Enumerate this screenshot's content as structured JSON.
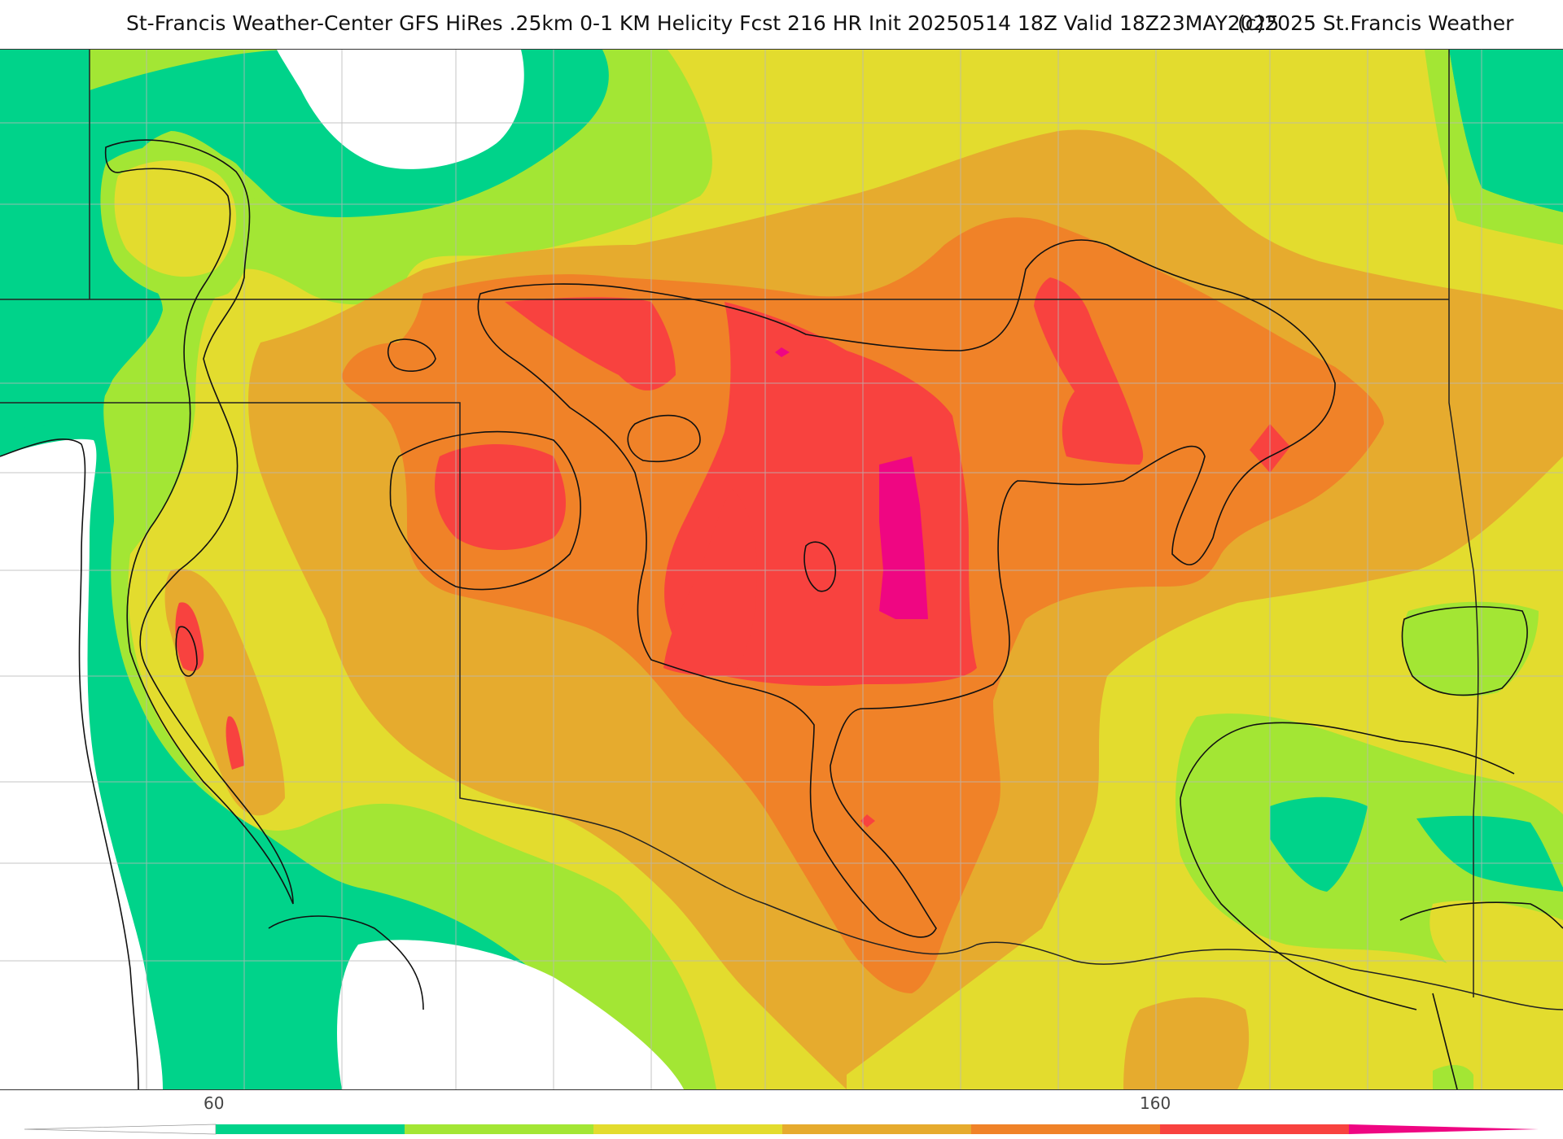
{
  "header": {
    "title": "St-Francis Weather-Center GFS HiRes .25km 0-1 KM Helicity Fcst 216 HR Init 20250514 18Z  Valid 18Z23MAY2025",
    "copyright": "(c)2025 St.Francis Weather"
  },
  "map": {
    "colors": {
      "below": "#ffffff",
      "band_60_80": "#00d38a",
      "band_80_100": "#a3e634",
      "band_100_120": "#e3dc2e",
      "band_120_140": "#e6ab2e",
      "band_140_160": "#f08228",
      "band_160_180": "#f8423f",
      "band_180_plus": "#ef0682",
      "state_border": "#222222",
      "county_line": "#b8b8b8",
      "contour": "#111111"
    }
  },
  "colorbar": {
    "ticks": [
      {
        "label": "60"
      },
      {
        "label": "160"
      }
    ],
    "segments": [
      {
        "name": "below-60",
        "color": "#ffffff"
      },
      {
        "name": "60-80",
        "color": "#00d38a"
      },
      {
        "name": "80-100",
        "color": "#a3e634"
      },
      {
        "name": "100-120",
        "color": "#e3dc2e"
      },
      {
        "name": "120-140",
        "color": "#e6ab2e"
      },
      {
        "name": "140-160",
        "color": "#f08228"
      },
      {
        "name": "160-180",
        "color": "#f8423f"
      },
      {
        "name": "180-plus",
        "color": "#ef0682"
      }
    ]
  }
}
